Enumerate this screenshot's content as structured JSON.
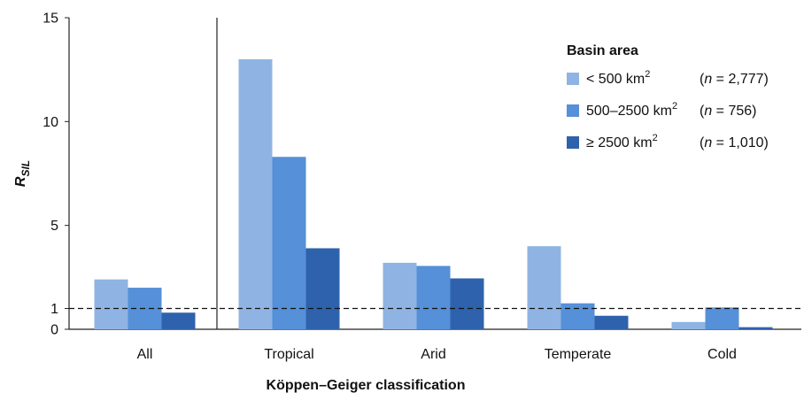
{
  "chart_data": {
    "type": "bar",
    "title": "",
    "xlabel": "Köppen–Geiger classification",
    "ylabel": {
      "main": "R",
      "sub": "SIL"
    },
    "ylim": [
      0,
      15
    ],
    "yticks": [
      0,
      1,
      5,
      10,
      15
    ],
    "reference_line": {
      "y": 1,
      "style": "dashed"
    },
    "categories": [
      "All",
      "Tropical",
      "Arid",
      "Temperate",
      "Cold"
    ],
    "series": [
      {
        "name": "< 500 km",
        "sup": "2",
        "n_label": "(n = 2,777)",
        "n_value": "2,777",
        "color": "#8fb4e3",
        "values": [
          2.4,
          13.0,
          3.2,
          4.0,
          0.35
        ]
      },
      {
        "name": "500–2500 km",
        "sup": "2",
        "n_label": "(n = 756)",
        "n_value": "756",
        "color": "#5590d8",
        "values": [
          2.0,
          8.3,
          3.05,
          1.25,
          1.05
        ]
      },
      {
        "name": "≥ 2500 km",
        "sup": "2",
        "n_label": "(n = 1,010)",
        "n_value": "1,010",
        "color": "#2f62ac",
        "values": [
          0.8,
          3.9,
          2.45,
          0.65,
          0.1
        ]
      }
    ],
    "legend": {
      "title": "Basin area",
      "placement": "top-right"
    },
    "separator_after_category": "All"
  }
}
